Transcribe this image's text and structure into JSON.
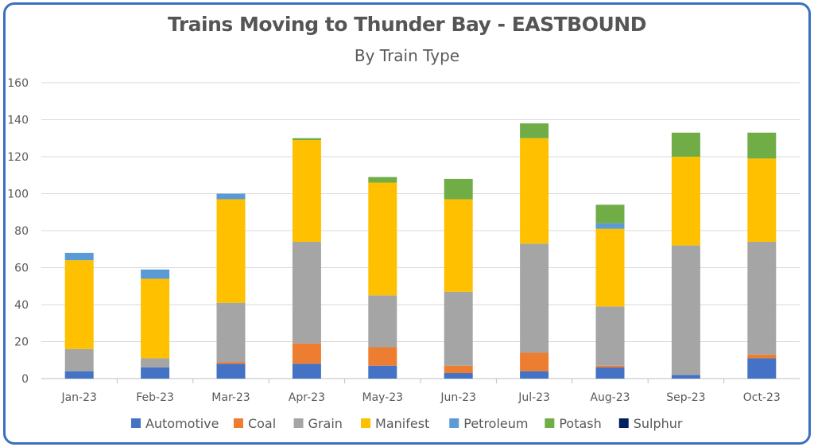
{
  "chart_data": {
    "type": "bar",
    "stacked": true,
    "title": "Trains Moving to Thunder Bay - EASTBOUND",
    "subtitle": "By Train Type",
    "xlabel": "",
    "ylabel": "",
    "ylim": [
      0,
      160
    ],
    "yticks": [
      "0",
      "20",
      "40",
      "60",
      "80",
      "100",
      "120",
      "140",
      "160"
    ],
    "grid": true,
    "legend_position": "bottom",
    "categories": [
      "Jan-23",
      "Feb-23",
      "Mar-23",
      "Apr-23",
      "May-23",
      "Jun-23",
      "Jul-23",
      "Aug-23",
      "Sep-23",
      "Oct-23"
    ],
    "series": [
      {
        "name": "Automotive",
        "color": "#4472c4",
        "values": [
          4,
          6,
          8,
          8,
          7,
          3,
          4,
          6,
          2,
          11
        ]
      },
      {
        "name": "Coal",
        "color": "#ed7d31",
        "values": [
          0,
          0,
          1,
          11,
          10,
          4,
          10,
          1,
          0,
          2
        ]
      },
      {
        "name": "Grain",
        "color": "#a5a5a5",
        "values": [
          12,
          5,
          32,
          55,
          28,
          40,
          59,
          32,
          70,
          61
        ]
      },
      {
        "name": "Manifest",
        "color": "#ffc000",
        "values": [
          48,
          43,
          56,
          55,
          61,
          50,
          57,
          42,
          48,
          45
        ]
      },
      {
        "name": "Petroleum",
        "color": "#5b9bd5",
        "values": [
          4,
          5,
          3,
          0,
          0,
          0,
          0,
          3,
          0,
          0
        ]
      },
      {
        "name": "Potash",
        "color": "#70ad47",
        "values": [
          0,
          0,
          0,
          1,
          3,
          11,
          8,
          10,
          13,
          14
        ]
      },
      {
        "name": "Sulphur",
        "color": "#002060",
        "values": [
          0,
          0,
          0,
          0,
          0,
          0,
          0,
          0,
          0,
          0
        ]
      }
    ]
  }
}
